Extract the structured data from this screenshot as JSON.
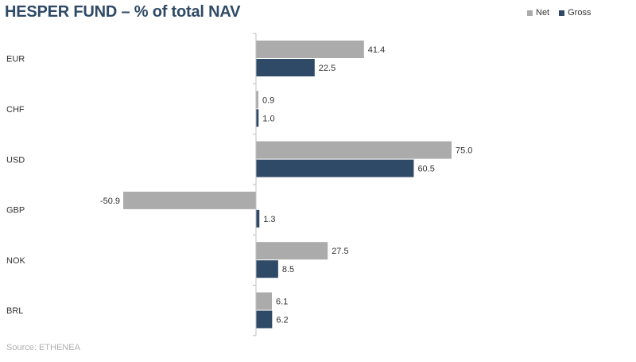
{
  "chart_data": {
    "type": "bar",
    "orientation": "horizontal",
    "title": "HESPER FUND – % of total NAV",
    "categories": [
      "EUR",
      "CHF",
      "USD",
      "GBP",
      "NOK",
      "BRL"
    ],
    "series": [
      {
        "name": "Net",
        "values": [
          41.4,
          0.9,
          75.0,
          -50.9,
          27.5,
          6.1
        ],
        "color": "#ababab"
      },
      {
        "name": "Gross",
        "values": [
          22.5,
          1.0,
          60.5,
          1.3,
          8.5,
          6.2
        ],
        "color": "#2f4a66"
      }
    ],
    "data_labels": [
      [
        "41.4",
        "0.9",
        "75.0",
        "-50.9",
        "27.5",
        "6.1"
      ],
      [
        "22.5",
        "1.0",
        "60.5",
        "1.3",
        "8.5",
        "6.2"
      ]
    ],
    "xlim": [
      -75,
      75
    ],
    "legend": "top-right",
    "grid": false
  },
  "source": "Source: ETHENEA"
}
